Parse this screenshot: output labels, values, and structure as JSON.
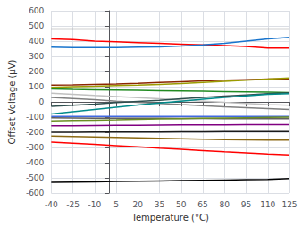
{
  "chart_data": {
    "type": "line",
    "xlabel": "Temperature (°C)",
    "ylabel": "Offset Voltage (μV)",
    "x": [
      -40,
      -25,
      -10,
      5,
      20,
      35,
      50,
      65,
      80,
      95,
      110,
      125
    ],
    "xlim": [
      -40,
      125
    ],
    "ylim": [
      -600,
      600
    ],
    "xticks": [
      -40,
      -25,
      -10,
      5,
      20,
      35,
      50,
      65,
      80,
      95,
      110,
      125
    ],
    "yticks": [
      -600,
      -500,
      -400,
      -300,
      -200,
      -100,
      0,
      100,
      200,
      300,
      400,
      500,
      600
    ],
    "grid": true,
    "series": [
      {
        "color": "#A0A0A0",
        "values": [
          480,
          null,
          null,
          null,
          null,
          null,
          null,
          null,
          null,
          null,
          null,
          480
        ]
      },
      {
        "color": "#FF0000",
        "values": [
          415,
          410,
          400,
          395,
          390,
          385,
          380,
          375,
          370,
          365,
          355,
          355
        ]
      },
      {
        "color": "#1874CD",
        "values": [
          360,
          358,
          358,
          358,
          360,
          362,
          368,
          375,
          385,
          400,
          415,
          425
        ]
      },
      {
        "color": "#8B2500",
        "values": [
          110,
          112,
          115,
          118,
          122,
          128,
          133,
          138,
          142,
          146,
          150,
          152
        ]
      },
      {
        "color": "#9B9B00",
        "values": [
          95,
          100,
          103,
          107,
          110,
          115,
          120,
          128,
          135,
          143,
          150,
          158
        ]
      },
      {
        "color": "#228B22",
        "values": [
          85,
          82,
          80,
          78,
          76,
          74,
          72,
          70,
          68,
          66,
          64,
          62
        ]
      },
      {
        "color": "#C0C0C0",
        "values": [
          58,
          50,
          42,
          35,
          28,
          20,
          12,
          5,
          -3,
          -10,
          -17,
          -22
        ]
      },
      {
        "color": "#808080",
        "values": [
          30,
          22,
          14,
          5,
          -3,
          -10,
          -18,
          -25,
          -32,
          -38,
          -44,
          -50
        ]
      },
      {
        "color": "#2F4F4F",
        "values": [
          -30,
          -22,
          -14,
          -5,
          3,
          10,
          20,
          30,
          38,
          46,
          54,
          60
        ]
      },
      {
        "color": "#008B8B",
        "values": [
          -80,
          -65,
          -50,
          -35,
          -20,
          -8,
          5,
          18,
          30,
          40,
          50,
          55
        ]
      },
      {
        "color": "#4169E1",
        "values": [
          -95,
          -95,
          -95,
          -95,
          -95,
          -95,
          -95,
          -95,
          -95,
          -95,
          -95,
          -95
        ]
      },
      {
        "color": "#606060",
        "values": [
          -105,
          -106,
          -107,
          -107,
          -108,
          -108,
          -109,
          -109,
          -110,
          -110,
          -110,
          -110
        ]
      },
      {
        "color": "#6B8E23",
        "values": [
          -125,
          -122,
          -120,
          -118,
          -115,
          -112,
          -110,
          -108,
          -106,
          -104,
          -102,
          -100
        ]
      },
      {
        "color": "#800080",
        "values": [
          -158,
          -157,
          -156,
          -155,
          -154,
          -153,
          -152,
          -152,
          -151,
          -150,
          -150,
          -150
        ]
      },
      {
        "color": "#1A1A1A",
        "values": [
          -200,
          -200,
          -199,
          -199,
          -198,
          -198,
          -197,
          -197,
          -196,
          -196,
          -195,
          -195
        ]
      },
      {
        "color": "#8B6914",
        "values": [
          -225,
          -228,
          -231,
          -234,
          -237,
          -240,
          -243,
          -246,
          -248,
          -250,
          -252,
          -252
        ]
      },
      {
        "color": "#FF0000",
        "values": [
          -265,
          -272,
          -280,
          -288,
          -296,
          -305,
          -312,
          -320,
          -328,
          -335,
          -342,
          -348
        ]
      },
      {
        "color": "#000000",
        "values": [
          -530,
          -528,
          -526,
          -524,
          -522,
          -520,
          -518,
          -516,
          -514,
          -512,
          -510,
          -505
        ]
      }
    ]
  }
}
